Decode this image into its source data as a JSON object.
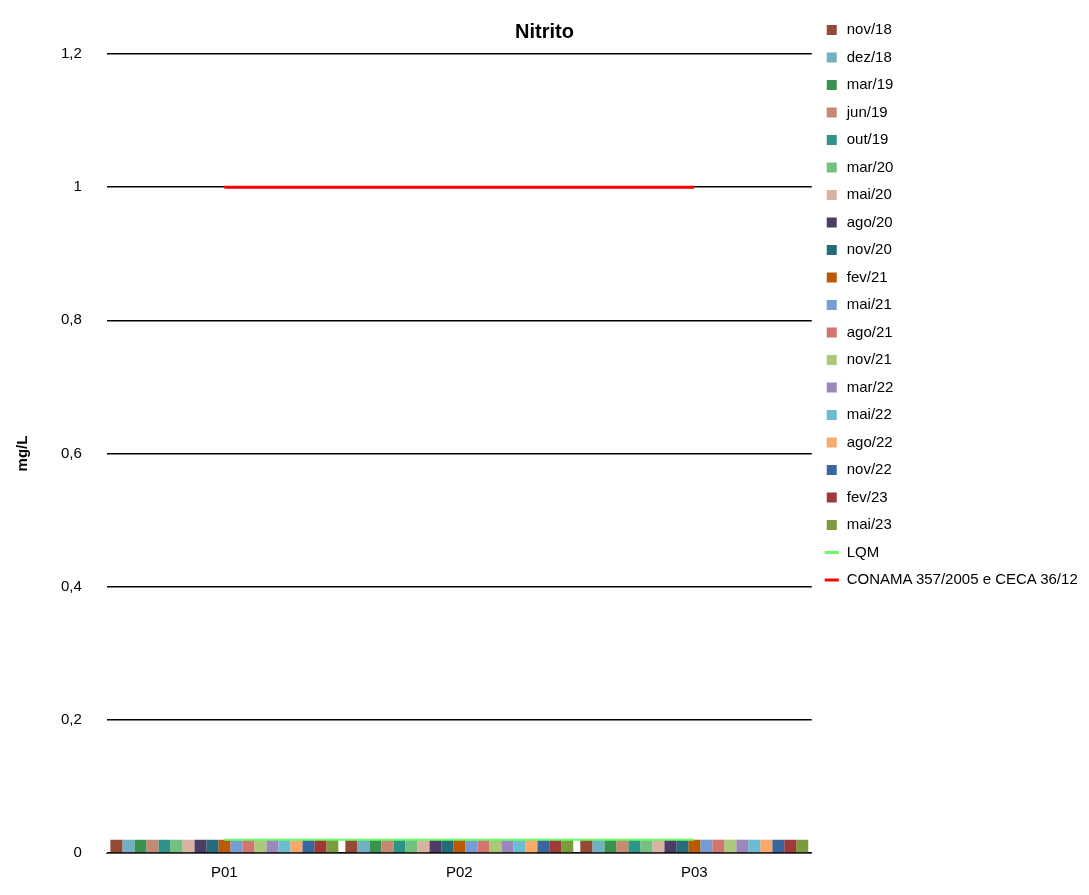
{
  "chart_data": {
    "type": "bar",
    "title": "Nitrito",
    "ylabel": "mg/L",
    "categories": [
      "P01",
      "P02",
      "P03"
    ],
    "series": [
      {
        "name": "nov/18",
        "color": "#954a33",
        "values": [
          0.02,
          0.02,
          0.02
        ]
      },
      {
        "name": "dez/18",
        "color": "#72b0c4",
        "values": [
          0.02,
          0.02,
          0.02
        ]
      },
      {
        "name": "mar/19",
        "color": "#3a9150",
        "values": [
          0.02,
          0.02,
          0.02
        ]
      },
      {
        "name": "jun/19",
        "color": "#c48b72",
        "values": [
          0.02,
          0.02,
          0.02
        ]
      },
      {
        "name": "out/19",
        "color": "#2e9488",
        "values": [
          0.02,
          0.02,
          0.02
        ]
      },
      {
        "name": "mar/20",
        "color": "#74c07e",
        "values": [
          0.02,
          0.02,
          0.02
        ]
      },
      {
        "name": "mai/20",
        "color": "#d8b3a2",
        "values": [
          0.02,
          0.02,
          0.02
        ]
      },
      {
        "name": "ago/20",
        "color": "#4d3c66",
        "values": [
          0.02,
          0.02,
          0.02
        ]
      },
      {
        "name": "nov/20",
        "color": "#256b7c",
        "values": [
          0.02,
          0.02,
          0.02
        ]
      },
      {
        "name": "fev/21",
        "color": "#ba5a06",
        "values": [
          0.02,
          0.02,
          0.02
        ]
      },
      {
        "name": "mai/21",
        "color": "#759dd2",
        "values": [
          0.02,
          0.02,
          0.02
        ]
      },
      {
        "name": "ago/21",
        "color": "#d27470",
        "values": [
          0.02,
          0.02,
          0.02
        ]
      },
      {
        "name": "nov/21",
        "color": "#acc87a",
        "values": [
          0.02,
          0.02,
          0.02
        ]
      },
      {
        "name": "mar/22",
        "color": "#9b87bb",
        "values": [
          0.02,
          0.02,
          0.02
        ]
      },
      {
        "name": "mai/22",
        "color": "#6dbcd2",
        "values": [
          0.02,
          0.02,
          0.02
        ]
      },
      {
        "name": "ago/22",
        "color": "#f9a96a",
        "values": [
          0.02,
          0.02,
          0.02
        ]
      },
      {
        "name": "nov/22",
        "color": "#39669c",
        "values": [
          0.02,
          0.02,
          0.02
        ]
      },
      {
        "name": "fev/23",
        "color": "#9e3a37",
        "values": [
          0.02,
          0.02,
          0.02
        ]
      },
      {
        "name": "mai/23",
        "color": "#7b9b3d",
        "values": [
          0.02,
          0.02,
          0.02
        ]
      },
      {
        "name": "LQM",
        "type": "line",
        "color": "#66ff66",
        "values": [
          0.02,
          0.02,
          0.02
        ]
      },
      {
        "name": "CONAMA 357/2005 e CECA 36/12",
        "type": "line",
        "color": "#ff0000",
        "values": [
          1,
          1,
          1
        ]
      }
    ],
    "ylim": [
      0,
      1.2
    ],
    "yticks": [
      0,
      {
        "value": 0.2,
        "label": "0,2"
      },
      {
        "value": 0.4,
        "label": "0,4"
      },
      {
        "value": 0.6,
        "label": "0,6"
      },
      {
        "value": 0.8,
        "label": "0,8"
      },
      1,
      {
        "value": 1.2,
        "label": "1,2"
      }
    ],
    "grid": "y",
    "legend": "right",
    "marker": "none",
    "line_style": "solid"
  }
}
